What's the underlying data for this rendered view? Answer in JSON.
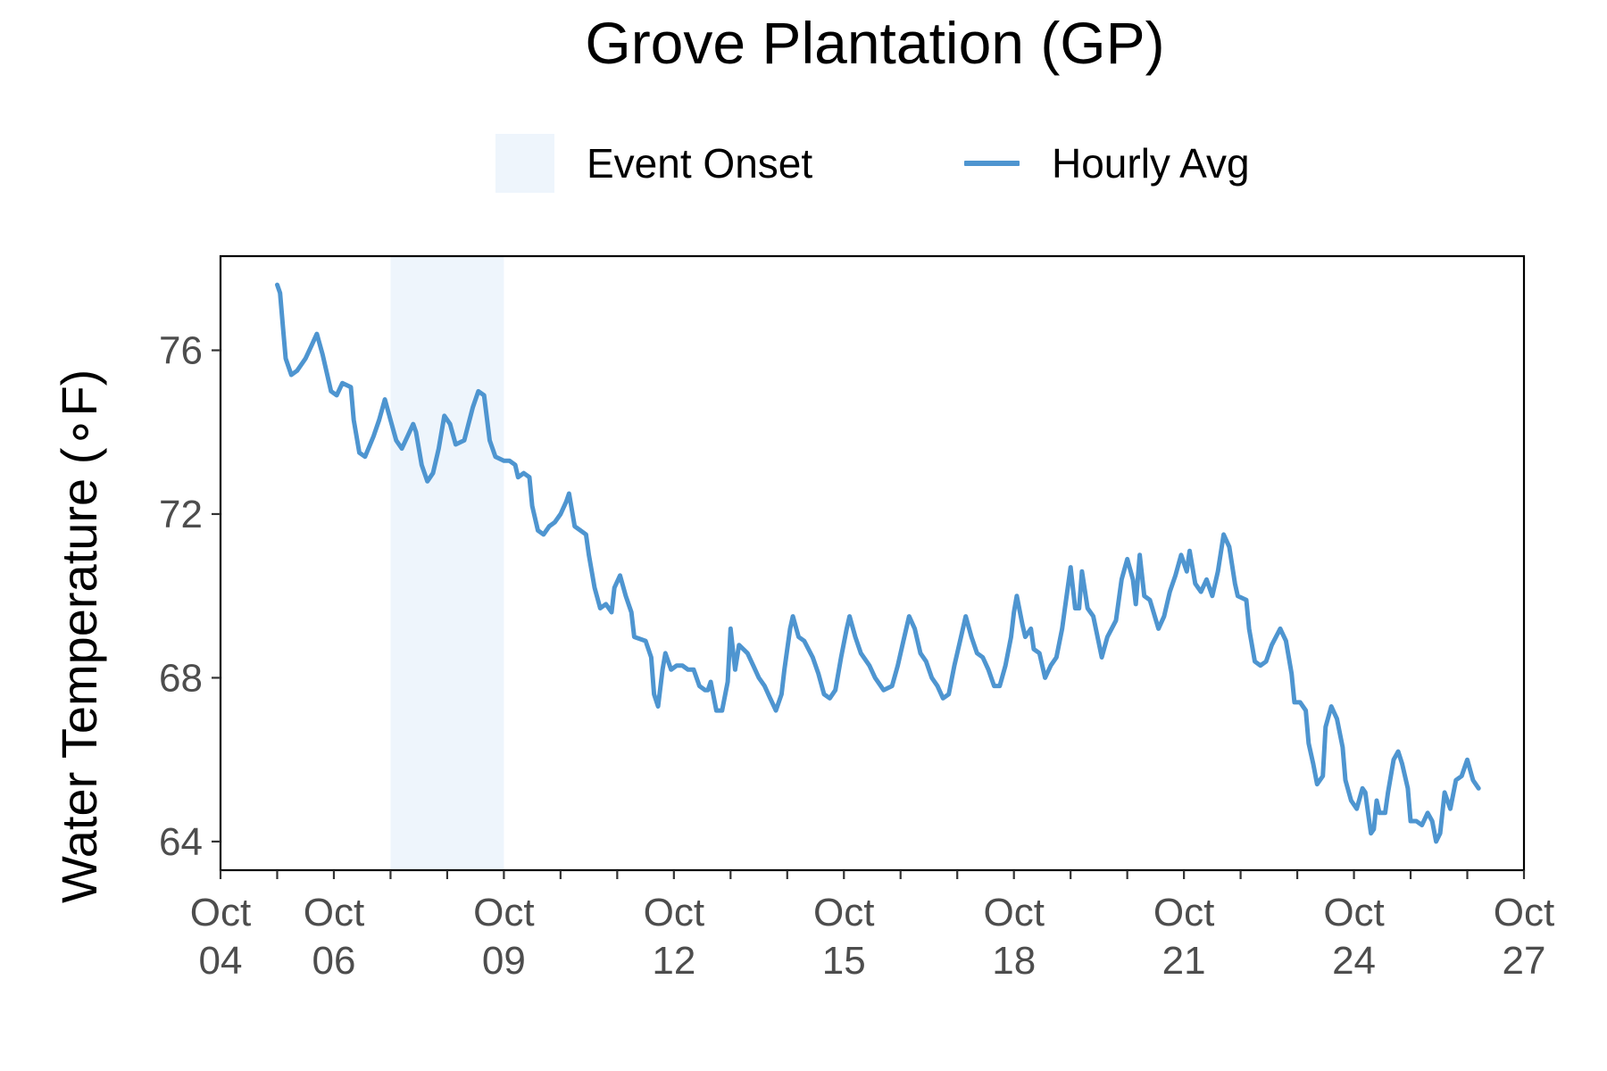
{
  "chart_data": {
    "type": "line",
    "title": "Grove Plantation (GP)",
    "ylabel": "Water Temperature (∘F)",
    "xlabel": "",
    "ylim": [
      63.3,
      78.3
    ],
    "xlim_days": [
      4,
      27
    ],
    "y_ticks": [
      64,
      68,
      72,
      76
    ],
    "x_ticks": [
      {
        "day": 4,
        "line1": "Oct",
        "line2": "04"
      },
      {
        "day": 6,
        "line1": "Oct",
        "line2": "06"
      },
      {
        "day": 9,
        "line1": "Oct",
        "line2": "09"
      },
      {
        "day": 12,
        "line1": "Oct",
        "line2": "12"
      },
      {
        "day": 15,
        "line1": "Oct",
        "line2": "15"
      },
      {
        "day": 18,
        "line1": "Oct",
        "line2": "18"
      },
      {
        "day": 21,
        "line1": "Oct",
        "line2": "21"
      },
      {
        "day": 24,
        "line1": "Oct",
        "line2": "24"
      },
      {
        "day": 27,
        "line1": "Oct",
        "line2": "27"
      }
    ],
    "minor_tick_days": [
      5,
      7,
      8,
      10,
      11,
      13,
      14,
      16,
      17,
      19,
      20,
      22,
      23,
      25,
      26
    ],
    "legend": [
      {
        "label": "Event Onset",
        "kind": "fill",
        "color": "#eef5fc"
      },
      {
        "label": "Hourly Avg",
        "kind": "line",
        "color": "#4e95d0"
      }
    ],
    "event_onset": {
      "start_day": 7.0,
      "end_day": 9.0,
      "color": "#eef5fc"
    },
    "series": [
      {
        "name": "Hourly Avg",
        "color": "#4e95d0",
        "points": [
          [
            5.0,
            77.6
          ],
          [
            5.05,
            77.4
          ],
          [
            5.1,
            76.6
          ],
          [
            5.15,
            75.8
          ],
          [
            5.25,
            75.4
          ],
          [
            5.35,
            75.5
          ],
          [
            5.5,
            75.8
          ],
          [
            5.6,
            76.1
          ],
          [
            5.7,
            76.4
          ],
          [
            5.8,
            75.9
          ],
          [
            5.95,
            75.0
          ],
          [
            6.05,
            74.9
          ],
          [
            6.15,
            75.2
          ],
          [
            6.3,
            75.1
          ],
          [
            6.35,
            74.3
          ],
          [
            6.45,
            73.5
          ],
          [
            6.55,
            73.4
          ],
          [
            6.7,
            73.9
          ],
          [
            6.8,
            74.3
          ],
          [
            6.9,
            74.8
          ],
          [
            7.0,
            74.3
          ],
          [
            7.1,
            73.8
          ],
          [
            7.2,
            73.6
          ],
          [
            7.3,
            73.9
          ],
          [
            7.4,
            74.2
          ],
          [
            7.45,
            74.0
          ],
          [
            7.55,
            73.2
          ],
          [
            7.65,
            72.8
          ],
          [
            7.75,
            73.0
          ],
          [
            7.85,
            73.6
          ],
          [
            7.95,
            74.4
          ],
          [
            8.05,
            74.2
          ],
          [
            8.15,
            73.7
          ],
          [
            8.3,
            73.8
          ],
          [
            8.45,
            74.6
          ],
          [
            8.55,
            75.0
          ],
          [
            8.65,
            74.9
          ],
          [
            8.75,
            73.8
          ],
          [
            8.85,
            73.4
          ],
          [
            9.0,
            73.3
          ],
          [
            9.1,
            73.3
          ],
          [
            9.2,
            73.2
          ],
          [
            9.25,
            72.9
          ],
          [
            9.35,
            73.0
          ],
          [
            9.45,
            72.9
          ],
          [
            9.5,
            72.2
          ],
          [
            9.6,
            71.6
          ],
          [
            9.7,
            71.5
          ],
          [
            9.8,
            71.7
          ],
          [
            9.9,
            71.8
          ],
          [
            10.0,
            72.0
          ],
          [
            10.1,
            72.3
          ],
          [
            10.15,
            72.5
          ],
          [
            10.25,
            71.7
          ],
          [
            10.35,
            71.6
          ],
          [
            10.45,
            71.5
          ],
          [
            10.5,
            71.0
          ],
          [
            10.6,
            70.2
          ],
          [
            10.7,
            69.7
          ],
          [
            10.8,
            69.8
          ],
          [
            10.9,
            69.6
          ],
          [
            10.95,
            70.2
          ],
          [
            11.05,
            70.5
          ],
          [
            11.15,
            70.0
          ],
          [
            11.25,
            69.6
          ],
          [
            11.3,
            69.0
          ],
          [
            11.5,
            68.9
          ],
          [
            11.6,
            68.5
          ],
          [
            11.65,
            67.6
          ],
          [
            11.72,
            67.3
          ],
          [
            11.8,
            68.2
          ],
          [
            11.85,
            68.6
          ],
          [
            11.95,
            68.2
          ],
          [
            12.05,
            68.3
          ],
          [
            12.15,
            68.3
          ],
          [
            12.25,
            68.2
          ],
          [
            12.35,
            68.2
          ],
          [
            12.45,
            67.8
          ],
          [
            12.55,
            67.7
          ],
          [
            12.6,
            67.7
          ],
          [
            12.65,
            67.9
          ],
          [
            12.75,
            67.2
          ],
          [
            12.85,
            67.2
          ],
          [
            12.95,
            67.9
          ],
          [
            13.0,
            69.2
          ],
          [
            13.08,
            68.2
          ],
          [
            13.15,
            68.8
          ],
          [
            13.3,
            68.6
          ],
          [
            13.4,
            68.3
          ],
          [
            13.5,
            68.0
          ],
          [
            13.6,
            67.8
          ],
          [
            13.7,
            67.5
          ],
          [
            13.8,
            67.2
          ],
          [
            13.9,
            67.6
          ],
          [
            13.95,
            68.2
          ],
          [
            14.05,
            69.2
          ],
          [
            14.1,
            69.5
          ],
          [
            14.2,
            69.0
          ],
          [
            14.3,
            68.9
          ],
          [
            14.45,
            68.5
          ],
          [
            14.55,
            68.1
          ],
          [
            14.65,
            67.6
          ],
          [
            14.75,
            67.5
          ],
          [
            14.85,
            67.7
          ],
          [
            14.95,
            68.5
          ],
          [
            15.05,
            69.2
          ],
          [
            15.1,
            69.5
          ],
          [
            15.2,
            69.0
          ],
          [
            15.3,
            68.6
          ],
          [
            15.45,
            68.3
          ],
          [
            15.55,
            68.0
          ],
          [
            15.7,
            67.7
          ],
          [
            15.85,
            67.8
          ],
          [
            15.95,
            68.3
          ],
          [
            16.05,
            68.9
          ],
          [
            16.15,
            69.5
          ],
          [
            16.25,
            69.2
          ],
          [
            16.35,
            68.6
          ],
          [
            16.45,
            68.4
          ],
          [
            16.55,
            68.0
          ],
          [
            16.65,
            67.8
          ],
          [
            16.75,
            67.5
          ],
          [
            16.85,
            67.6
          ],
          [
            16.95,
            68.3
          ],
          [
            17.05,
            68.9
          ],
          [
            17.15,
            69.5
          ],
          [
            17.25,
            69.0
          ],
          [
            17.35,
            68.6
          ],
          [
            17.45,
            68.5
          ],
          [
            17.55,
            68.2
          ],
          [
            17.65,
            67.8
          ],
          [
            17.75,
            67.8
          ],
          [
            17.85,
            68.3
          ],
          [
            17.95,
            69.0
          ],
          [
            18.0,
            69.6
          ],
          [
            18.05,
            70.0
          ],
          [
            18.15,
            69.3
          ],
          [
            18.2,
            69.0
          ],
          [
            18.3,
            69.2
          ],
          [
            18.35,
            68.7
          ],
          [
            18.45,
            68.6
          ],
          [
            18.55,
            68.0
          ],
          [
            18.65,
            68.3
          ],
          [
            18.75,
            68.5
          ],
          [
            18.85,
            69.2
          ],
          [
            18.9,
            69.7
          ],
          [
            19.0,
            70.7
          ],
          [
            19.08,
            69.7
          ],
          [
            19.15,
            69.7
          ],
          [
            19.2,
            70.6
          ],
          [
            19.3,
            69.7
          ],
          [
            19.4,
            69.5
          ],
          [
            19.55,
            68.5
          ],
          [
            19.65,
            69.0
          ],
          [
            19.8,
            69.4
          ],
          [
            19.9,
            70.4
          ],
          [
            20.0,
            70.9
          ],
          [
            20.1,
            70.4
          ],
          [
            20.15,
            69.8
          ],
          [
            20.22,
            71.0
          ],
          [
            20.3,
            70.0
          ],
          [
            20.4,
            69.9
          ],
          [
            20.55,
            69.2
          ],
          [
            20.65,
            69.5
          ],
          [
            20.75,
            70.1
          ],
          [
            20.85,
            70.5
          ],
          [
            20.95,
            71.0
          ],
          [
            21.05,
            70.6
          ],
          [
            21.1,
            71.1
          ],
          [
            21.2,
            70.3
          ],
          [
            21.3,
            70.1
          ],
          [
            21.4,
            70.4
          ],
          [
            21.5,
            70.0
          ],
          [
            21.6,
            70.6
          ],
          [
            21.7,
            71.5
          ],
          [
            21.8,
            71.2
          ],
          [
            21.9,
            70.3
          ],
          [
            21.95,
            70.0
          ],
          [
            22.1,
            69.9
          ],
          [
            22.15,
            69.2
          ],
          [
            22.25,
            68.4
          ],
          [
            22.35,
            68.3
          ],
          [
            22.45,
            68.4
          ],
          [
            22.55,
            68.8
          ],
          [
            22.7,
            69.2
          ],
          [
            22.8,
            68.9
          ],
          [
            22.9,
            68.1
          ],
          [
            22.95,
            67.4
          ],
          [
            23.05,
            67.4
          ],
          [
            23.15,
            67.2
          ],
          [
            23.2,
            66.4
          ],
          [
            23.28,
            65.9
          ],
          [
            23.35,
            65.4
          ],
          [
            23.45,
            65.6
          ],
          [
            23.5,
            66.8
          ],
          [
            23.6,
            67.3
          ],
          [
            23.7,
            67.0
          ],
          [
            23.8,
            66.3
          ],
          [
            23.85,
            65.5
          ],
          [
            23.95,
            65.0
          ],
          [
            24.05,
            64.8
          ],
          [
            24.15,
            65.3
          ],
          [
            24.2,
            65.2
          ],
          [
            24.25,
            64.7
          ],
          [
            24.3,
            64.2
          ],
          [
            24.35,
            64.3
          ],
          [
            24.4,
            65.0
          ],
          [
            24.45,
            64.7
          ],
          [
            24.55,
            64.7
          ],
          [
            24.6,
            65.2
          ],
          [
            24.7,
            66.0
          ],
          [
            24.78,
            66.2
          ],
          [
            24.85,
            65.9
          ],
          [
            24.95,
            65.3
          ],
          [
            25.0,
            64.5
          ],
          [
            25.1,
            64.5
          ],
          [
            25.2,
            64.4
          ],
          [
            25.3,
            64.7
          ],
          [
            25.38,
            64.5
          ],
          [
            25.45,
            64.0
          ],
          [
            25.52,
            64.2
          ],
          [
            25.6,
            65.2
          ],
          [
            25.7,
            64.8
          ],
          [
            25.8,
            65.5
          ],
          [
            25.9,
            65.6
          ],
          [
            26.0,
            66.0
          ],
          [
            26.1,
            65.5
          ],
          [
            26.2,
            65.3
          ]
        ]
      }
    ]
  }
}
